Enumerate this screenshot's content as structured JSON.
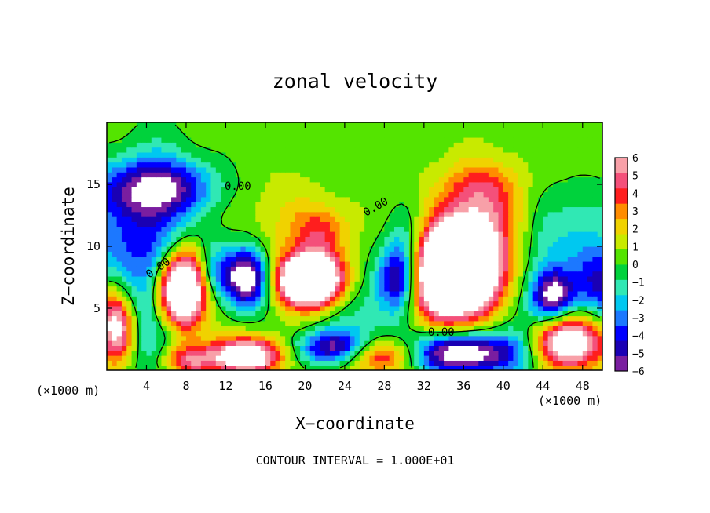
{
  "chart_data": {
    "type": "heatmap",
    "title": "zonal velocity",
    "xlabel": "X−coordinate",
    "ylabel": "Z−coordinate",
    "x_unit": "(×1000 m)",
    "y_unit": "(×1000 m)",
    "xlim": [
      0,
      50
    ],
    "ylim": [
      0,
      20
    ],
    "x_ticks": [
      4,
      8,
      12,
      16,
      20,
      24,
      28,
      32,
      36,
      40,
      44,
      48
    ],
    "y_ticks": [
      5,
      10,
      15
    ],
    "colorbar": {
      "min": -6,
      "max": 6,
      "ticks": [
        "6",
        "5",
        "4",
        "3",
        "2",
        "1",
        "0",
        "−1",
        "−2",
        "−3",
        "−4",
        "−5",
        "−6"
      ]
    },
    "contour_labels": [
      "0.00",
      "0.00",
      "0.00",
      "0.00"
    ],
    "footnote": "CONTOUR INTERVAL = 1.000E+01",
    "blobs": [
      {
        "x": 5,
        "z": 8,
        "sx": 2.6,
        "sz": 6.0,
        "v": -5
      },
      {
        "x": 2,
        "z": 14.5,
        "sx": 4.5,
        "sz": 1.8,
        "v": -4
      },
      {
        "x": 7,
        "z": 15,
        "sx": 3.5,
        "sz": 1.5,
        "v": -3
      },
      {
        "x": 0.5,
        "z": 10,
        "sx": 2,
        "sz": 2,
        "v": -2.5
      },
      {
        "x": 7.5,
        "z": 6.5,
        "sx": 1.8,
        "sz": 2.2,
        "v": 14
      },
      {
        "x": 1,
        "z": 3.5,
        "sx": 1.3,
        "sz": 2.0,
        "v": 8
      },
      {
        "x": 10.5,
        "z": 8,
        "sx": 1.2,
        "sz": 1.8,
        "v": -3
      },
      {
        "x": 14,
        "z": 7.5,
        "sx": 1.7,
        "sz": 1.7,
        "v": -9
      },
      {
        "x": 20.5,
        "z": 7.3,
        "sx": 2.3,
        "sz": 1.5,
        "v": 14
      },
      {
        "x": 21.5,
        "z": 11.3,
        "sx": 2.0,
        "sz": 1.5,
        "v": 3.5
      },
      {
        "x": 17.5,
        "z": 12.5,
        "sx": 2.5,
        "sz": 2.5,
        "v": 1
      },
      {
        "x": 14,
        "z": 1.2,
        "sx": 2.5,
        "sz": 1.0,
        "v": 9
      },
      {
        "x": 8,
        "z": 0.8,
        "sx": 2.0,
        "sz": 1.0,
        "v": 5
      },
      {
        "x": 27.5,
        "z": 1.2,
        "sx": 3,
        "sz": 1.0,
        "v": 6
      },
      {
        "x": 23,
        "z": 1.8,
        "sx": 2.5,
        "sz": 1.0,
        "v": -7
      },
      {
        "x": 25,
        "z": 5,
        "sx": 3,
        "sz": 2.5,
        "v": -2
      },
      {
        "x": 29.5,
        "z": 7.5,
        "sx": 1.5,
        "sz": 2.0,
        "v": -8
      },
      {
        "x": 30.5,
        "z": 10.5,
        "sx": 1.5,
        "sz": 2.0,
        "v": -3
      },
      {
        "x": 35,
        "z": 8,
        "sx": 3.2,
        "sz": 2.6,
        "v": 16
      },
      {
        "x": 38,
        "z": 12.5,
        "sx": 3.0,
        "sz": 2.5,
        "v": 3.5
      },
      {
        "x": 37.5,
        "z": 15,
        "sx": 2.5,
        "sz": 1.5,
        "v": 2
      },
      {
        "x": 35.5,
        "z": 1.4,
        "sx": 4,
        "sz": 1.2,
        "v": -9
      },
      {
        "x": 41.5,
        "z": 2.5,
        "sx": 2.0,
        "sz": 3.0,
        "v": -2
      },
      {
        "x": 45,
        "z": 6,
        "sx": 1.5,
        "sz": 1.5,
        "v": -7
      },
      {
        "x": 46.5,
        "z": 2.3,
        "sx": 2.5,
        "sz": 1.5,
        "v": 9
      },
      {
        "x": 50,
        "z": 7,
        "sx": 2,
        "sz": 2,
        "v": -5
      },
      {
        "x": 44,
        "z": 10,
        "sx": 2,
        "sz": 3,
        "v": -2
      },
      {
        "x": 48.5,
        "z": 11,
        "sx": 2.5,
        "sz": 3,
        "v": -2
      }
    ]
  }
}
